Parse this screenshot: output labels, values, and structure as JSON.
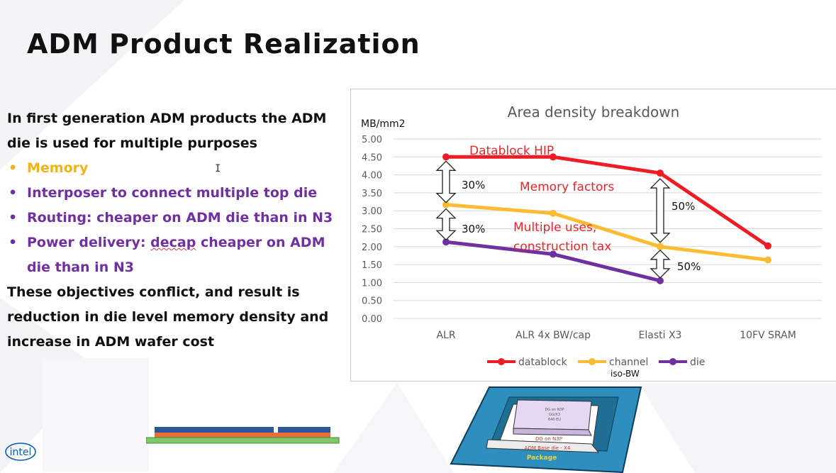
{
  "title": "ADM Product Realization",
  "intro": [
    "In first generation ADM products the ADM",
    "die is used for multiple purposes"
  ],
  "bullets": {
    "memory": "Memory",
    "interposer": "Interposer to connect multiple top die",
    "routing": "Routing: cheaper on ADM die than in N3",
    "power_a": "Power delivery: ",
    "power_decap": "decap",
    "power_b": " cheaper on ADM",
    "power_c": "die than in N3"
  },
  "conclusion": [
    "These objectives conflict, and result is",
    "reduction in die level memory density and",
    "increase in ADM wafer cost"
  ],
  "bullet_glyph": "•",
  "cursor_glyph": "I",
  "colors": {
    "datablock": "#ee1c25",
    "channel": "#fbbc34",
    "die": "#7030a0",
    "memory_text": "#f2b21c",
    "purple_text": "#7030a0"
  },
  "chart_data": {
    "type": "line",
    "title": "Area density breakdown",
    "ylabel": "MB/mm2",
    "xlabel": "",
    "ylim": [
      0,
      5
    ],
    "yticks": [
      "0.00",
      "0.50",
      "1.00",
      "1.50",
      "2.00",
      "2.50",
      "3.00",
      "3.50",
      "4.00",
      "4.50",
      "5.00"
    ],
    "categories": [
      "ALR",
      "ALR 4x BW/cap",
      "Elasti X3",
      "10FV SRAM"
    ],
    "series": [
      {
        "name": "datablock",
        "values": [
          4.5,
          4.5,
          4.05,
          2.02
        ]
      },
      {
        "name": "channel",
        "values": [
          3.17,
          2.93,
          2.0,
          1.63
        ]
      },
      {
        "name": "die",
        "values": [
          2.13,
          1.79,
          1.05,
          null
        ]
      }
    ],
    "legend": [
      "datablock",
      "channel",
      "die"
    ],
    "legend_note": "iso-BW",
    "annotations": {
      "datablock_hip": "Datablock HIP",
      "memory_factors": "Memory factors",
      "multiple_uses_1": "Multiple uses,",
      "multiple_uses_2": "construction tax",
      "pct_alr_top": "30%",
      "pct_alr_bottom": "30%",
      "pct_elasti_top": "50%",
      "pct_elasti_bottom": "50%"
    }
  },
  "package_labels": {
    "top_die_1": "DG on N3P",
    "top_die_2": "GG/X3",
    "top_die_3": "640 EU",
    "top_die_label": "DG on N3P",
    "base_die": "ADM Base die - X4",
    "package": "Package"
  },
  "logo": "intel"
}
